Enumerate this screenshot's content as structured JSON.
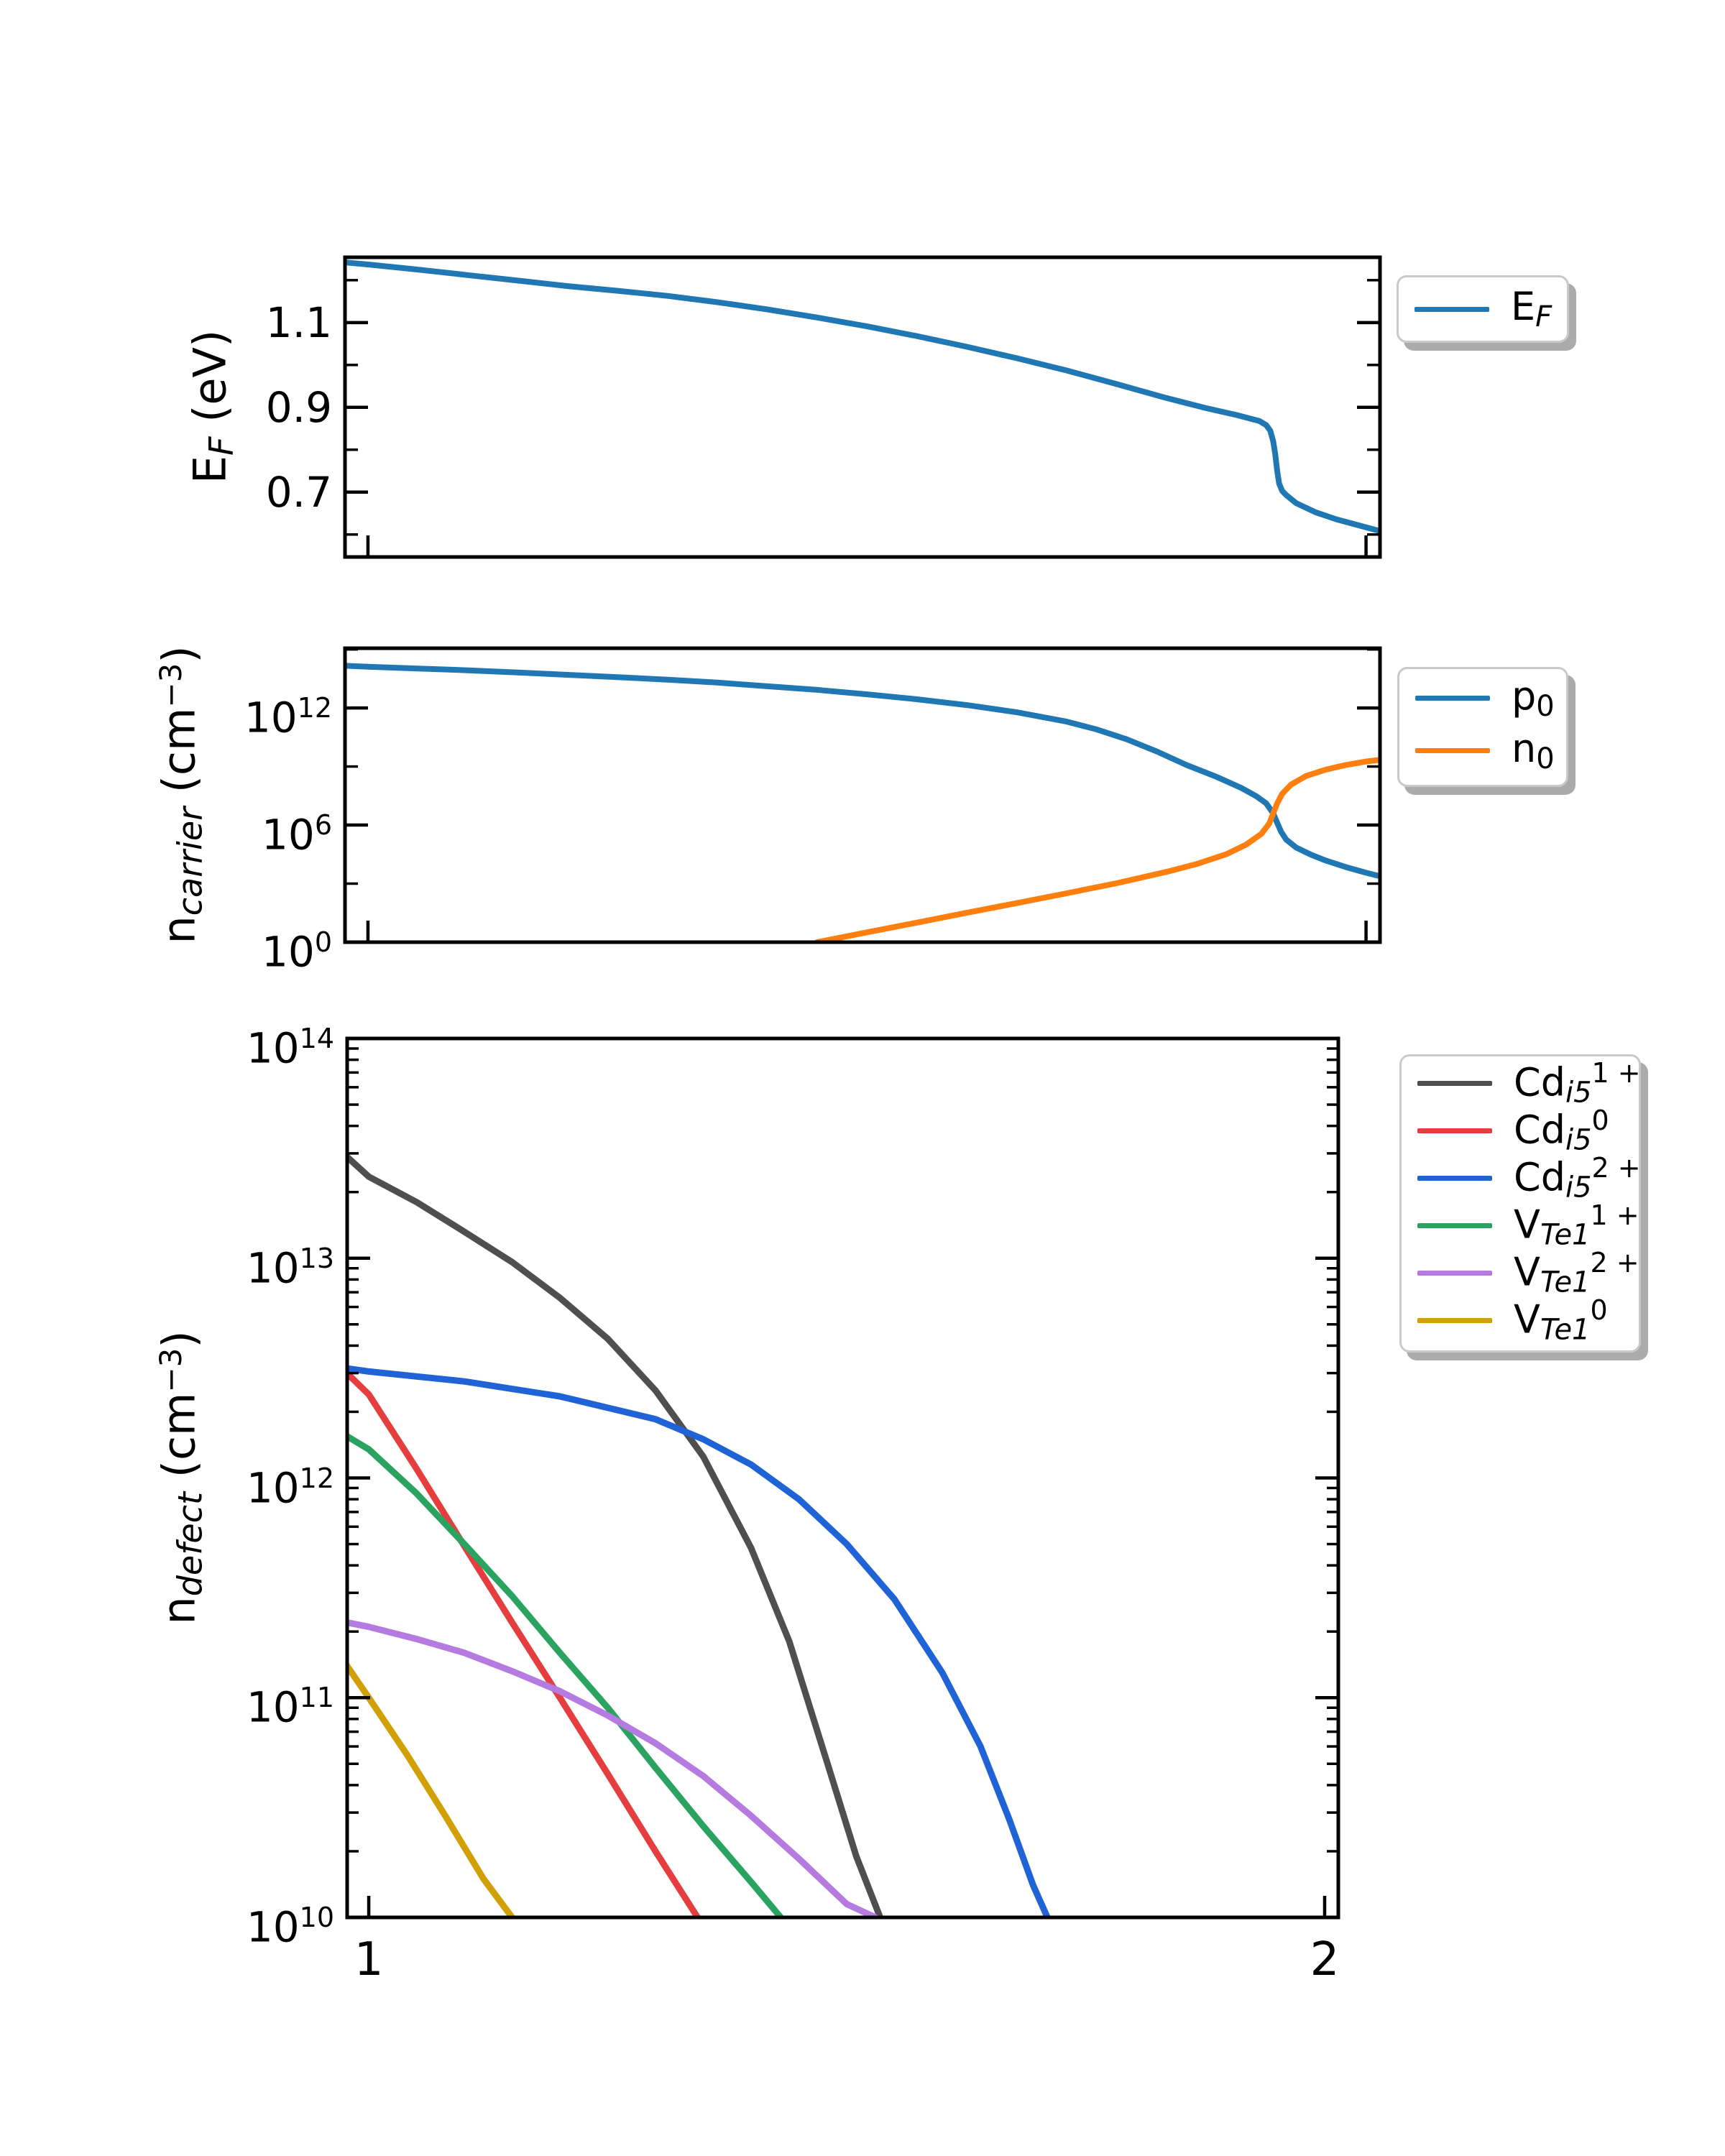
{
  "figure": {
    "background_color": "#ffffff",
    "spine_color": "#000000"
  },
  "panels": [
    {
      "name": "fermi-level-panel",
      "ylabel": {
        "main": "E",
        "sub": "F",
        "rest": " (eV)"
      },
      "legend": {
        "items": [
          {
            "main": "E",
            "sub": "F",
            "sup": "",
            "color": "#1f77b4"
          }
        ]
      }
    },
    {
      "name": "carrier-concentration-panel",
      "ylabel": {
        "main": "n",
        "sub": "carrier",
        "mid": " (cm",
        "sup": "−3",
        "end": ")"
      },
      "legend": {
        "items": [
          {
            "main": "p",
            "sub": "0",
            "sup": "",
            "color": "#1f77b4"
          },
          {
            "main": "n",
            "sub": "0",
            "sup": "",
            "color": "#ff7f0e"
          }
        ]
      }
    },
    {
      "name": "defect-concentration-panel",
      "ylabel": {
        "main": "n",
        "sub": "defect",
        "mid": " (cm",
        "sup": "−3",
        "end": ")"
      },
      "legend": {
        "items": [
          {
            "main": "Cd",
            "sub": "i5",
            "sup": "1 +",
            "color": "#4f4f4f"
          },
          {
            "main": "Cd",
            "sub": "i5",
            "sup": "0",
            "color": "#e63e3e"
          },
          {
            "main": "Cd",
            "sub": "i5",
            "sup": "2 +",
            "color": "#1f63d6"
          },
          {
            "main": "V",
            "sub": "Te1",
            "sup": "1 +",
            "color": "#2aa360"
          },
          {
            "main": "V",
            "sub": "Te1",
            "sup": "2 +",
            "color": "#b57be0"
          },
          {
            "main": "V",
            "sub": "Te1",
            "sup": "0",
            "color": "#d0a004"
          }
        ]
      }
    }
  ],
  "chart_data": [
    {
      "type": "line",
      "title": "",
      "xlabel": "",
      "ylabel": "E_F (eV)",
      "yscale": "linear",
      "grid": false,
      "legend_position": "outside upper right",
      "xlim": [
        0.977,
        2.014
      ],
      "ylim": [
        0.547,
        1.254
      ],
      "yticks": [
        {
          "value": 1.1,
          "label": "1.1"
        },
        {
          "value": 0.9,
          "label": "0.9"
        },
        {
          "value": 0.7,
          "label": "0.7"
        }
      ],
      "yticks_minor": [
        1.2,
        1.0,
        0.8,
        0.6
      ],
      "xticks": [
        {
          "value": 1,
          "label": ""
        },
        {
          "value": 2,
          "label": ""
        }
      ],
      "series": [
        {
          "name": "E_F",
          "color": "#1f77b4",
          "points": [
            [
              0.977,
              1.242
            ],
            [
              1.0,
              1.237
            ],
            [
              1.05,
              1.225
            ],
            [
              1.1,
              1.212
            ],
            [
              1.15,
              1.199
            ],
            [
              1.2,
              1.186
            ],
            [
              1.25,
              1.175
            ],
            [
              1.3,
              1.163
            ],
            [
              1.35,
              1.148
            ],
            [
              1.4,
              1.131
            ],
            [
              1.45,
              1.112
            ],
            [
              1.5,
              1.091
            ],
            [
              1.55,
              1.068
            ],
            [
              1.6,
              1.043
            ],
            [
              1.65,
              1.016
            ],
            [
              1.7,
              0.987
            ],
            [
              1.75,
              0.955
            ],
            [
              1.8,
              0.922
            ],
            [
              1.84,
              0.898
            ],
            [
              1.87,
              0.882
            ],
            [
              1.893,
              0.868
            ],
            [
              1.9,
              0.858
            ],
            [
              1.904,
              0.845
            ],
            [
              1.907,
              0.82
            ],
            [
              1.909,
              0.79
            ],
            [
              1.911,
              0.75
            ],
            [
              1.913,
              0.72
            ],
            [
              1.916,
              0.703
            ],
            [
              1.92,
              0.693
            ],
            [
              1.93,
              0.674
            ],
            [
              1.95,
              0.652
            ],
            [
              1.97,
              0.636
            ],
            [
              2.0,
              0.617
            ],
            [
              2.014,
              0.608
            ]
          ]
        }
      ]
    },
    {
      "type": "line",
      "title": "",
      "xlabel": "",
      "ylabel": "n_carrier (cm^-3)",
      "yscale": "log",
      "grid": false,
      "legend_position": "outside upper right",
      "xlim": [
        0.977,
        2.014
      ],
      "ylim_exp": [
        0,
        15.06
      ],
      "yticks": [
        {
          "base": "10",
          "exp": "12",
          "value_exp": 12
        },
        {
          "base": "10",
          "exp": "6",
          "value_exp": 6
        },
        {
          "base": "10",
          "exp": "0",
          "value_exp": 0
        }
      ],
      "yticks_minor_exp": [
        15,
        9,
        3
      ],
      "xticks": [
        {
          "value": 1,
          "label": ""
        },
        {
          "value": 2,
          "label": ""
        }
      ],
      "series": [
        {
          "name": "p_0",
          "color": "#1f77b4",
          "points": [
            [
              0.977,
              145000000000000.0
            ],
            [
              1.0,
              130000000000000.0
            ],
            [
              1.05,
              105000000000000.0
            ],
            [
              1.1,
              85000000000000.0
            ],
            [
              1.15,
              66000000000000.0
            ],
            [
              1.2,
              50000000000000.0
            ],
            [
              1.25,
              38000000000000.0
            ],
            [
              1.3,
              28000000000000.0
            ],
            [
              1.35,
              20000000000000.0
            ],
            [
              1.4,
              13000000000000.0
            ],
            [
              1.45,
              8500000000000.0
            ],
            [
              1.5,
              5000000000000.0
            ],
            [
              1.55,
              2800000000000.0
            ],
            [
              1.6,
              1400000000000.0
            ],
            [
              1.65,
              600000000000.0
            ],
            [
              1.7,
              200000000000.0
            ],
            [
              1.73,
              80000000000.0
            ],
            [
              1.76,
              25000000000.0
            ],
            [
              1.79,
              6000000000.0
            ],
            [
              1.82,
              1200000000.0
            ],
            [
              1.85,
              300000000.0
            ],
            [
              1.875,
              80000000.0
            ],
            [
              1.89,
              30000000.0
            ],
            [
              1.9,
              13000000.0
            ],
            [
              1.907,
              4000000.0
            ],
            [
              1.911,
              1300000.0
            ],
            [
              1.915,
              450000.0
            ],
            [
              1.92,
              180000.0
            ],
            [
              1.93,
              70000.0
            ],
            [
              1.945,
              30000.0
            ],
            [
              1.96,
              15000.0
            ],
            [
              1.98,
              7000.0
            ],
            [
              2.0,
              3600.0
            ],
            [
              2.014,
              2400.0
            ]
          ]
        },
        {
          "name": "n_0",
          "color": "#ff7f0e",
          "points": [
            [
              1.45,
              1.0
            ],
            [
              1.5,
              3.2
            ],
            [
              1.55,
              10
            ],
            [
              1.6,
              32
            ],
            [
              1.65,
              100.0
            ],
            [
              1.7,
              320.0
            ],
            [
              1.75,
              1050.0
            ],
            [
              1.8,
              4000.0
            ],
            [
              1.83,
              10000.0
            ],
            [
              1.86,
              32000.0
            ],
            [
              1.88,
              100000.0
            ],
            [
              1.895,
              350000.0
            ],
            [
              1.903,
              1200000.0
            ],
            [
              1.907,
              4000000.0
            ],
            [
              1.911,
              13000000.0
            ],
            [
              1.916,
              40000000.0
            ],
            [
              1.925,
              120000000.0
            ],
            [
              1.94,
              330000000.0
            ],
            [
              1.96,
              700000000.0
            ],
            [
              1.98,
              1200000000.0
            ],
            [
              2.0,
              1800000000.0
            ],
            [
              2.014,
              2200000000.0
            ]
          ]
        }
      ]
    },
    {
      "type": "line",
      "title": "",
      "xlabel": "",
      "ylabel": "n_defect (cm^-3)",
      "yscale": "log",
      "grid": false,
      "legend_position": "outside upper right",
      "xlim": [
        0.9774,
        2.0143
      ],
      "ylim_exp": [
        10,
        14
      ],
      "log_minor_ticks": true,
      "yticks": [
        {
          "base": "10",
          "exp": "14",
          "value_exp": 14
        },
        {
          "base": "10",
          "exp": "13",
          "value_exp": 13
        },
        {
          "base": "10",
          "exp": "12",
          "value_exp": 12
        },
        {
          "base": "10",
          "exp": "11",
          "value_exp": 11
        },
        {
          "base": "10",
          "exp": "10",
          "value_exp": 10
        }
      ],
      "xticks": [
        {
          "value": 1,
          "label": "1"
        },
        {
          "value": 2,
          "label": "2"
        }
      ],
      "series": [
        {
          "name": "Cd_i5^1+",
          "color": "#4f4f4f",
          "points": [
            [
              0.977,
              29000000000000.0
            ],
            [
              1.0,
              23500000000000.0
            ],
            [
              1.05,
              18000000000000.0
            ],
            [
              1.1,
              13200000000000.0
            ],
            [
              1.15,
              9600000000000.0
            ],
            [
              1.2,
              6600000000000.0
            ],
            [
              1.25,
              4300000000000.0
            ],
            [
              1.3,
              2500000000000.0
            ],
            [
              1.35,
              1250000000000.0
            ],
            [
              1.4,
              480000000000.0
            ],
            [
              1.44,
              180000000000.0
            ],
            [
              1.48,
              50000000000.0
            ],
            [
              1.51,
              19000000000.0
            ],
            [
              1.535,
              10000000000.0
            ]
          ]
        },
        {
          "name": "Cd_i5^0",
          "color": "#e63e3e",
          "points": [
            [
              0.977,
              3000000000000.0
            ],
            [
              1.0,
              2400000000000.0
            ],
            [
              1.05,
              1100000000000.0
            ],
            [
              1.1,
              490000000000.0
            ],
            [
              1.15,
              220000000000.0
            ],
            [
              1.2,
              100000000000.0
            ],
            [
              1.25,
              45000000000.0
            ],
            [
              1.3,
              20000000000.0
            ],
            [
              1.344,
              10000000000.0
            ]
          ]
        },
        {
          "name": "Cd_i5^2+",
          "color": "#1f63d6",
          "points": [
            [
              0.977,
              3150000000000.0
            ],
            [
              1.0,
              3050000000000.0
            ],
            [
              1.1,
              2750000000000.0
            ],
            [
              1.2,
              2350000000000.0
            ],
            [
              1.3,
              1850000000000.0
            ],
            [
              1.35,
              1500000000000.0
            ],
            [
              1.4,
              1150000000000.0
            ],
            [
              1.45,
              800000000000.0
            ],
            [
              1.5,
              500000000000.0
            ],
            [
              1.55,
              280000000000.0
            ],
            [
              1.6,
              130000000000.0
            ],
            [
              1.64,
              60000000000.0
            ],
            [
              1.67,
              28000000000.0
            ],
            [
              1.695,
              14000000000.0
            ],
            [
              1.71,
              10000000000.0
            ]
          ]
        },
        {
          "name": "V_Te1^1+",
          "color": "#2aa360",
          "points": [
            [
              0.977,
              1550000000000.0
            ],
            [
              1.0,
              1350000000000.0
            ],
            [
              1.05,
              850000000000.0
            ],
            [
              1.1,
              500000000000.0
            ],
            [
              1.15,
              290000000000.0
            ],
            [
              1.2,
              160000000000.0
            ],
            [
              1.25,
              90000000000.0
            ],
            [
              1.3,
              48000000000.0
            ],
            [
              1.35,
              26000000000.0
            ],
            [
              1.4,
              14500000000.0
            ],
            [
              1.431,
              10000000000.0
            ]
          ]
        },
        {
          "name": "V_Te1^2+",
          "color": "#b57be0",
          "points": [
            [
              0.977,
              220000000000.0
            ],
            [
              1.0,
              210000000000.0
            ],
            [
              1.05,
              185000000000.0
            ],
            [
              1.1,
              160000000000.0
            ],
            [
              1.15,
              132000000000.0
            ],
            [
              1.2,
              107000000000.0
            ],
            [
              1.25,
              83000000000.0
            ],
            [
              1.3,
              62000000000.0
            ],
            [
              1.35,
              44000000000.0
            ],
            [
              1.4,
              29000000000.0
            ],
            [
              1.45,
              18500000000.0
            ],
            [
              1.5,
              11500000000.0
            ],
            [
              1.53,
              10000000000.0
            ]
          ]
        },
        {
          "name": "V_Te1^0",
          "color": "#d0a004",
          "points": [
            [
              0.977,
              140000000000.0
            ],
            [
              1.0,
              100000000000.0
            ],
            [
              1.04,
              55000000000.0
            ],
            [
              1.08,
              29000000000.0
            ],
            [
              1.12,
              15000000000.0
            ],
            [
              1.15,
              10000000000.0
            ]
          ]
        }
      ]
    }
  ]
}
